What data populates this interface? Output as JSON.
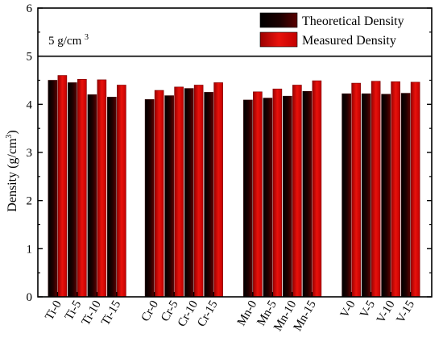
{
  "chart_data": {
    "type": "bar",
    "ylabel": "Density (g/cm3)",
    "ylim": [
      0,
      6
    ],
    "yticks": [
      0,
      1,
      2,
      3,
      4,
      5,
      6
    ],
    "legend_position": "top-right",
    "grid": false,
    "annotation": {
      "text": "5 g/cm",
      "superscript": "3",
      "reference_line_y": 5
    },
    "groups": [
      [
        "Ti-0",
        "Ti-5",
        "Ti-10",
        "Ti-15"
      ],
      [
        "Cr-0",
        "Cr-5",
        "Cr-10",
        "Cr-15"
      ],
      [
        "Mn-0",
        "Mn-5",
        "Mn-10",
        "Mn-15"
      ],
      [
        "V-0",
        "V-5",
        "V-10",
        "V-15"
      ]
    ],
    "categories": [
      "Ti-0",
      "Ti-5",
      "Ti-10",
      "Ti-15",
      "Cr-0",
      "Cr-5",
      "Cr-10",
      "Cr-15",
      "Mn-0",
      "Mn-5",
      "Mn-10",
      "Mn-15",
      "V-0",
      "V-5",
      "V-10",
      "V-15"
    ],
    "series": [
      {
        "name": "Theoretical Density",
        "color": "#000000",
        "values": [
          4.5,
          4.45,
          4.2,
          4.15,
          4.1,
          4.18,
          4.33,
          4.25,
          4.09,
          4.13,
          4.17,
          4.27,
          4.22,
          4.22,
          4.21,
          4.23
        ]
      },
      {
        "name": "Measured Density",
        "color": "#e8120c",
        "values": [
          4.6,
          4.52,
          4.51,
          4.4,
          4.29,
          4.36,
          4.4,
          4.45,
          4.26,
          4.32,
          4.4,
          4.49,
          4.44,
          4.48,
          4.47,
          4.46
        ]
      }
    ]
  }
}
